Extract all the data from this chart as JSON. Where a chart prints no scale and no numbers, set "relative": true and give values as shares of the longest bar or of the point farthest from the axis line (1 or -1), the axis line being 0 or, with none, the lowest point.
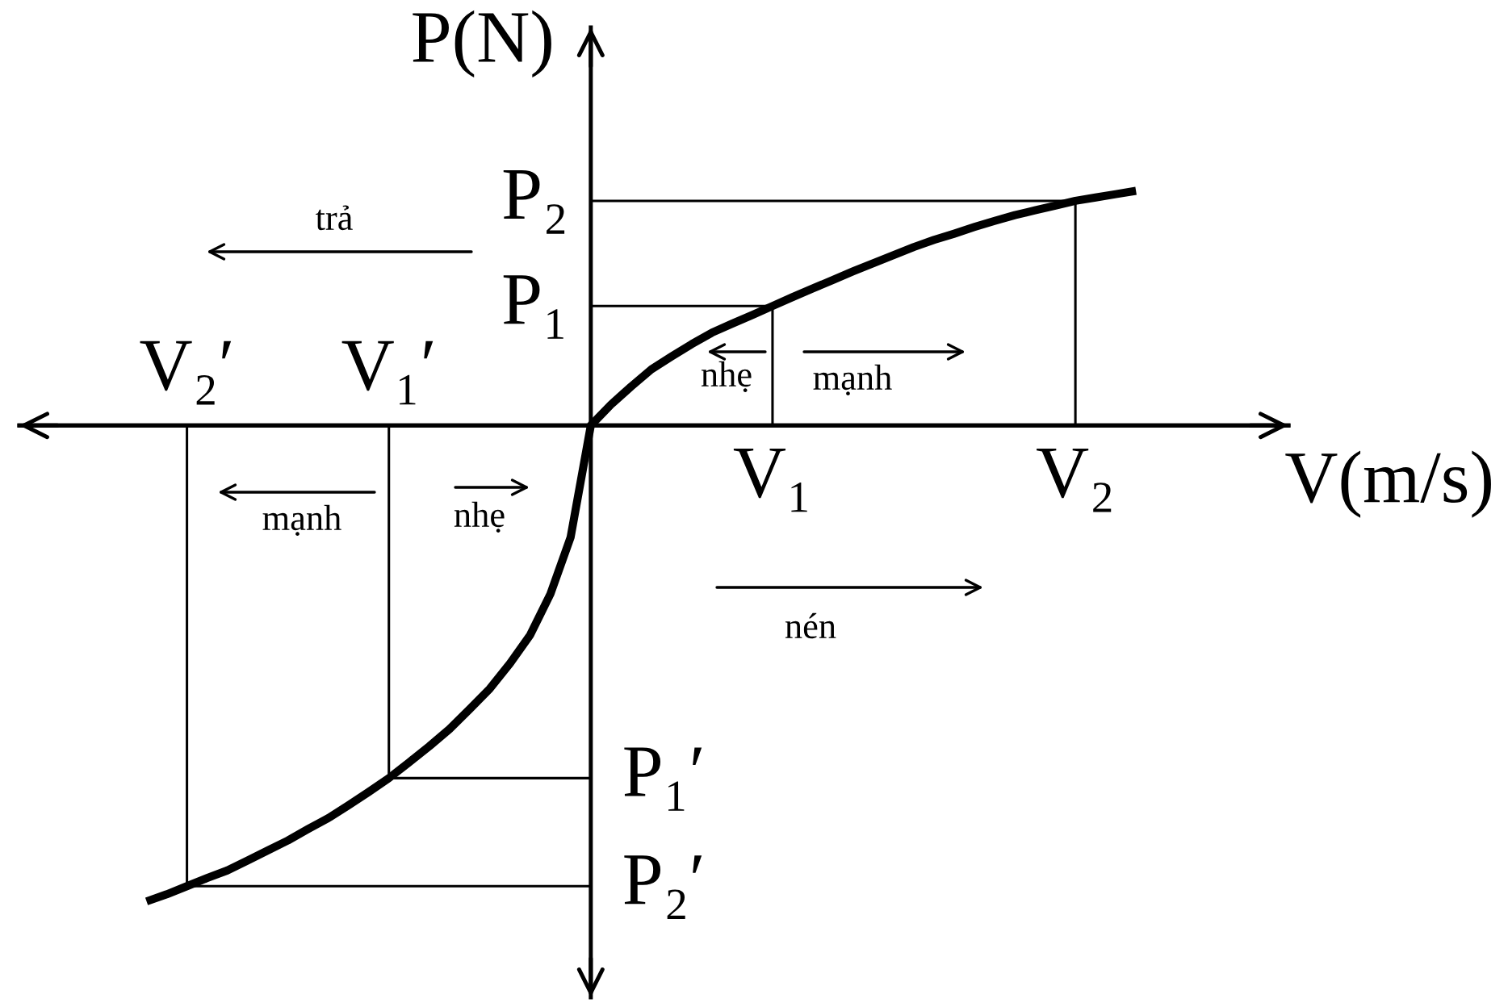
{
  "chart_data": {
    "type": "line",
    "relative": true,
    "xlabel": "V(m/s)",
    "ylabel": "P(N)",
    "tick_labels": "x",
    "color": "#000000",
    "line_style": "solid",
    "categories": [
      null,
      null,
      "V₂′",
      null,
      null,
      null,
      null,
      null,
      null,
      null,
      null,
      null,
      "V₁′",
      null,
      null,
      null,
      null,
      null,
      null,
      null,
      null,
      null,
      null,
      null,
      null,
      null,
      null,
      null,
      null,
      null,
      null,
      "V₁",
      null,
      null,
      null,
      null,
      null,
      null,
      null,
      null,
      null,
      null,
      null,
      null,
      null,
      null,
      "V₂",
      null,
      null,
      null
    ],
    "values": [
      -1,
      -0.985,
      -0.968,
      -0.951,
      -0.935,
      -0.914,
      -0.893,
      -0.872,
      -0.848,
      -0.825,
      -0.798,
      -0.77,
      -0.741,
      -0.708,
      -0.674,
      -0.638,
      -0.596,
      -0.553,
      -0.5,
      -0.44,
      -0.354,
      -0.235,
      0,
      0.044,
      0.082,
      0.118,
      0.145,
      0.171,
      0.195,
      0.214,
      0.232,
      0.251,
      0.27,
      0.288,
      0.306,
      0.324,
      0.341,
      0.358,
      0.375,
      0.39,
      0.403,
      0.417,
      0.43,
      0.442,
      0.452,
      0.462,
      0.472,
      0.479,
      0.486,
      0.493
    ],
    "ref_lines": [
      {
        "axis": "y",
        "value": 0.472,
        "label": "P₂"
      },
      {
        "axis": "y",
        "value": 0.251,
        "label": "P₁"
      },
      {
        "axis": "y",
        "value": -0.741,
        "label": "P₁′"
      },
      {
        "axis": "y",
        "value": -0.968,
        "label": "P₂′"
      }
    ],
    "annotations": [
      "trả",
      "nhẹ",
      "mạnh",
      "nén",
      "mạnh",
      "nhẹ"
    ]
  }
}
